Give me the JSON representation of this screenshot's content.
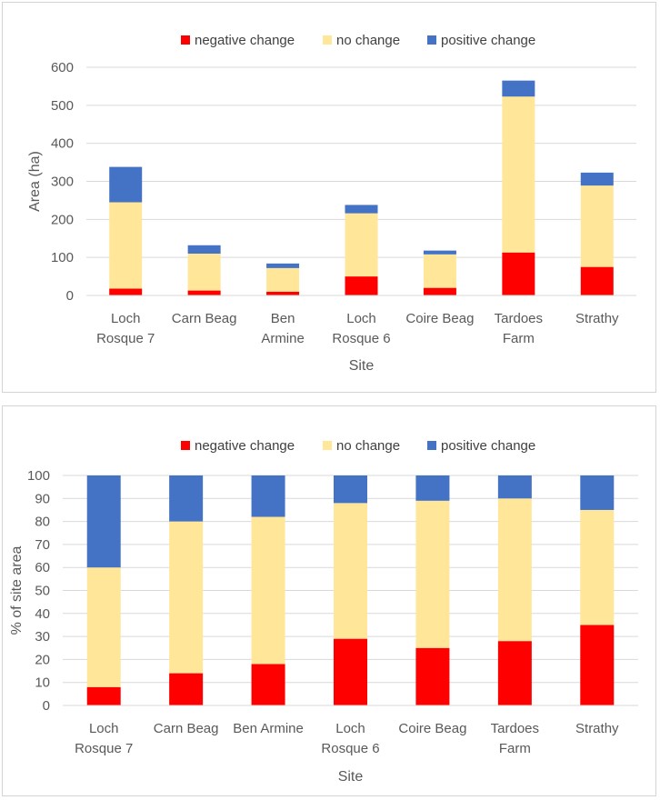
{
  "colors": {
    "negative": "#ff0000",
    "no_change": "#ffe699",
    "positive": "#4472c4"
  },
  "charts": [
    {
      "type": "bar",
      "stacked": true,
      "ylabel": "Area (ha)",
      "xlabel": "Site",
      "ylim": [
        0,
        600
      ],
      "yticks": [
        "0",
        "100",
        "200",
        "300",
        "400",
        "500",
        "600"
      ],
      "gridlines": true,
      "legend": [
        "negative change",
        "no change",
        "positive change"
      ],
      "categories": [
        [
          "Loch",
          "Rosque 7"
        ],
        [
          "Carn Beag"
        ],
        [
          "Ben",
          "Armine"
        ],
        [
          "Loch",
          "Rosque 6"
        ],
        [
          "Coire Beag"
        ],
        [
          "Tardoes",
          "Farm"
        ],
        [
          "Strathy"
        ]
      ],
      "series": [
        {
          "name": "negative change",
          "values": [
            18,
            13,
            10,
            50,
            20,
            113,
            75
          ]
        },
        {
          "name": "no change",
          "values": [
            227,
            97,
            62,
            166,
            88,
            410,
            214
          ]
        },
        {
          "name": "positive change",
          "values": [
            93,
            22,
            12,
            22,
            10,
            42,
            34
          ]
        }
      ]
    },
    {
      "type": "bar",
      "stacked": true,
      "ylabel": "% of site area",
      "xlabel": "Site",
      "ylim": [
        0,
        100
      ],
      "yticks": [
        "0",
        "10",
        "20",
        "30",
        "40",
        "50",
        "60",
        "70",
        "80",
        "90",
        "100"
      ],
      "gridlines": true,
      "legend": [
        "negative change",
        "no change",
        "positive change"
      ],
      "categories": [
        [
          "Loch",
          "Rosque 7"
        ],
        [
          "Carn Beag"
        ],
        [
          "Ben Armine"
        ],
        [
          "Loch",
          "Rosque 6"
        ],
        [
          "Coire Beag"
        ],
        [
          "Tardoes",
          "Farm"
        ],
        [
          "Strathy"
        ]
      ],
      "series": [
        {
          "name": "negative change",
          "values": [
            8,
            14,
            18,
            29,
            25,
            28,
            35
          ]
        },
        {
          "name": "no change",
          "values": [
            52,
            66,
            64,
            59,
            64,
            62,
            50
          ]
        },
        {
          "name": "positive change",
          "values": [
            40,
            20,
            18,
            12,
            11,
            10,
            15
          ]
        }
      ]
    }
  ]
}
